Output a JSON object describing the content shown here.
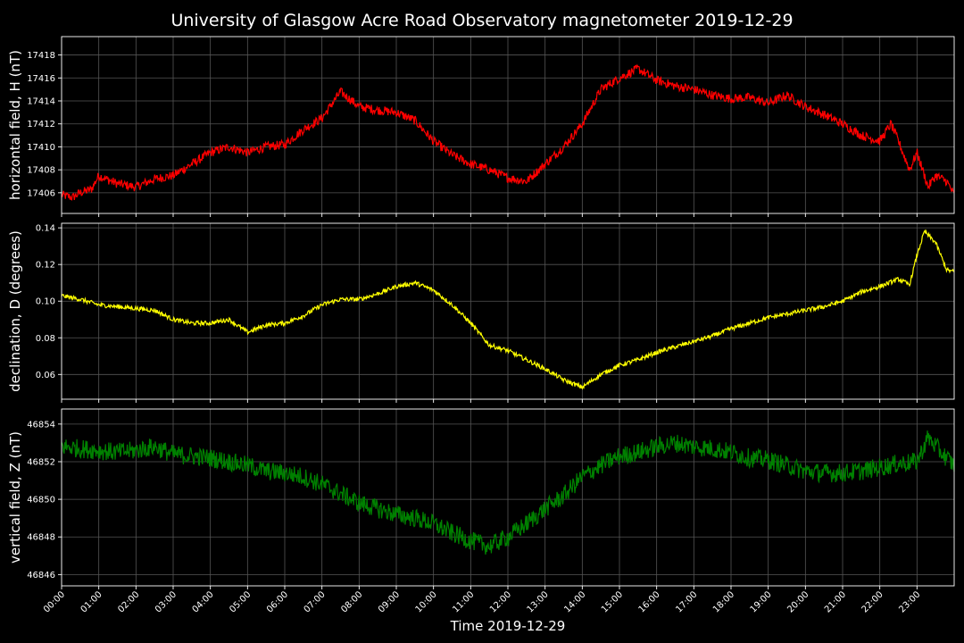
{
  "chart_data": {
    "type": "line",
    "title": "University of Glasgow Acre Road Observatory magnetometer 2019-12-29",
    "xlabel": "Time 2019-12-29",
    "x_ticks": [
      "00:00",
      "01:00",
      "02:00",
      "03:00",
      "04:00",
      "05:00",
      "06:00",
      "07:00",
      "08:00",
      "09:00",
      "10:00",
      "11:00",
      "12:00",
      "13:00",
      "14:00",
      "15:00",
      "16:00",
      "17:00",
      "18:00",
      "19:00",
      "20:00",
      "21:00",
      "22:00",
      "23:00"
    ],
    "xlim_hours": [
      0,
      24
    ],
    "grid": true,
    "panels": [
      {
        "ylabel": "horizontal field, H (nT)",
        "color": "#ff0000",
        "ylim": [
          17404.2,
          17419.6
        ],
        "y_ticks": [
          "17406",
          "17408",
          "17410",
          "17412",
          "17414",
          "17416",
          "17418"
        ],
        "noise": 0.4,
        "series": {
          "x": [
            0,
            0.3,
            0.5,
            0.8,
            1,
            1.2,
            1.5,
            2,
            2.5,
            3,
            3.5,
            4,
            4.5,
            5,
            5.5,
            6,
            6.5,
            7,
            7.5,
            8,
            8.5,
            9,
            9.5,
            10,
            10.5,
            11,
            11.5,
            12,
            12.5,
            13,
            13.5,
            14,
            14.5,
            15,
            15.5,
            16,
            16.5,
            17,
            17.5,
            18,
            18.5,
            19,
            19.5,
            20,
            20.5,
            21,
            21.5,
            22,
            22.3,
            22.5,
            22.8,
            23,
            23.3,
            23.5,
            23.8,
            24
          ],
          "y": [
            17405.8,
            17405.6,
            17406,
            17406.3,
            17407.5,
            17407.2,
            17406.8,
            17406.5,
            17407.2,
            17407.5,
            17408.5,
            17409.5,
            17410,
            17409.5,
            17410,
            17410.2,
            17411.5,
            17412.5,
            17414.8,
            17413.5,
            17413.2,
            17413,
            17412.3,
            17410.5,
            17409.3,
            17408.5,
            17408,
            17407.3,
            17407,
            17408.5,
            17410,
            17412,
            17415,
            17416,
            17416.8,
            17415.8,
            17415.3,
            17415,
            17414.5,
            17414.2,
            17414.3,
            17413.8,
            17414.5,
            17413.5,
            17412.8,
            17412,
            17411,
            17410.5,
            17412,
            17410.5,
            17408,
            17409.5,
            17406.5,
            17407.5,
            17407,
            17405.8
          ]
        }
      },
      {
        "ylabel": "declination, D (degrees)",
        "color": "#ffff00",
        "ylim": [
          0.0465,
          0.1425
        ],
        "y_ticks": [
          "0.06",
          "0.08",
          "0.10",
          "0.12",
          "0.14"
        ],
        "noise": 0.0012,
        "series": {
          "x": [
            0,
            0.5,
            1,
            1.5,
            2,
            2.5,
            3,
            3.5,
            4,
            4.5,
            5,
            5.5,
            6,
            6.5,
            7,
            7.5,
            8,
            8.5,
            9,
            9.5,
            10,
            10.5,
            11,
            11.5,
            12,
            12.5,
            13,
            13.5,
            14,
            14.5,
            15,
            15.5,
            16,
            16.5,
            17,
            17.5,
            18,
            18.5,
            19,
            19.5,
            20,
            20.5,
            21,
            21.5,
            22,
            22.5,
            22.8,
            23,
            23.2,
            23.5,
            23.8,
            24
          ],
          "y": [
            0.103,
            0.101,
            0.098,
            0.097,
            0.096,
            0.095,
            0.09,
            0.088,
            0.088,
            0.09,
            0.083,
            0.087,
            0.088,
            0.092,
            0.098,
            0.101,
            0.101,
            0.104,
            0.108,
            0.11,
            0.106,
            0.098,
            0.088,
            0.076,
            0.073,
            0.068,
            0.063,
            0.057,
            0.053,
            0.06,
            0.065,
            0.068,
            0.072,
            0.075,
            0.078,
            0.081,
            0.085,
            0.088,
            0.091,
            0.093,
            0.095,
            0.097,
            0.1,
            0.105,
            0.108,
            0.112,
            0.109,
            0.125,
            0.138,
            0.132,
            0.117,
            0.116
          ]
        }
      },
      {
        "ylabel": "vertical field, Z (nT)",
        "color": "#008000",
        "ylim": [
          46845.4,
          46854.8
        ],
        "y_ticks": [
          "46846",
          "46848",
          "46850",
          "46852",
          "46854"
        ],
        "noise": 0.5,
        "series": {
          "x": [
            0,
            0.5,
            1,
            1.5,
            2,
            2.5,
            3,
            3.5,
            4,
            4.5,
            5,
            5.5,
            6,
            6.5,
            7,
            7.5,
            8,
            8.5,
            9,
            9.5,
            10,
            10.5,
            11,
            11.5,
            12,
            12.5,
            13,
            13.5,
            14,
            14.5,
            15,
            15.5,
            16,
            16.5,
            17,
            17.5,
            18,
            18.5,
            19,
            19.5,
            20,
            20.5,
            21,
            21.5,
            22,
            22.5,
            23,
            23.3,
            23.6,
            24
          ],
          "y": [
            46852.8,
            46852.7,
            46852.6,
            46852.5,
            46852.6,
            46852.8,
            46852.4,
            46852.3,
            46852.2,
            46852.0,
            46851.8,
            46851.5,
            46851.4,
            46851.2,
            46850.8,
            46850.3,
            46849.8,
            46849.5,
            46849.2,
            46849.0,
            46848.7,
            46848.2,
            46847.8,
            46847.5,
            46848.0,
            46848.7,
            46849.5,
            46850.2,
            46851.2,
            46851.8,
            46852.3,
            46852.5,
            46852.8,
            46853.0,
            46852.8,
            46852.7,
            46852.5,
            46852.2,
            46852.1,
            46851.8,
            46851.5,
            46851.4,
            46851.4,
            46851.5,
            46851.7,
            46851.9,
            46852.0,
            46853.3,
            46852.6,
            46851.8
          ]
        }
      }
    ]
  }
}
